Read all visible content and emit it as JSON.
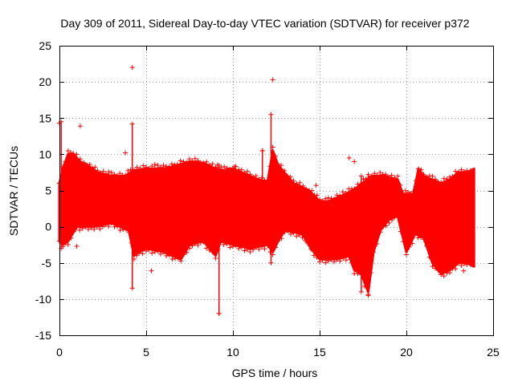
{
  "chart_data": {
    "type": "scatter",
    "title": "Day 309 of 2011, Sidereal Day-to-day VTEC variation (SDTVAR) for receiver p372",
    "xlabel": "GPS time / hours",
    "ylabel": "SDTVAR / TECUs",
    "xlim": [
      0,
      25
    ],
    "ylim": [
      -15,
      25
    ],
    "xticks": [
      0,
      5,
      10,
      15,
      20,
      25
    ],
    "yticks": [
      -15,
      -10,
      -5,
      0,
      5,
      10,
      15,
      20,
      25
    ],
    "grid": true,
    "marker": "+",
    "series_color": "#ff0000",
    "band_upper": [
      [
        0,
        6
      ],
      [
        0.2,
        8
      ],
      [
        0.5,
        10
      ],
      [
        0.8,
        10
      ],
      [
        1.2,
        9
      ],
      [
        1.6,
        8.5
      ],
      [
        2.2,
        7.5
      ],
      [
        3,
        7
      ],
      [
        3.8,
        7
      ],
      [
        4.1,
        7.5
      ],
      [
        4.3,
        7.8
      ],
      [
        5,
        8
      ],
      [
        6,
        8
      ],
      [
        6.8,
        8.5
      ],
      [
        7.5,
        9
      ],
      [
        8.3,
        8.8
      ],
      [
        9,
        8
      ],
      [
        9.5,
        7.8
      ],
      [
        10,
        8
      ],
      [
        10.5,
        7.5
      ],
      [
        11.5,
        6.5
      ],
      [
        12,
        6.2
      ],
      [
        12.3,
        10.5
      ],
      [
        12.6,
        8.5
      ],
      [
        13.5,
        6
      ],
      [
        14.4,
        5
      ],
      [
        15,
        3.5
      ],
      [
        15.5,
        3.5
      ],
      [
        16.5,
        4.5
      ],
      [
        17.2,
        5.5
      ],
      [
        18,
        7
      ],
      [
        18.8,
        7
      ],
      [
        19.5,
        6.5
      ],
      [
        19.8,
        4.5
      ],
      [
        20.4,
        4.5
      ],
      [
        20.7,
        8
      ],
      [
        21,
        7
      ],
      [
        21.5,
        6.5
      ],
      [
        22,
        6
      ],
      [
        22.5,
        6.5
      ],
      [
        23,
        7.5
      ],
      [
        23.5,
        7.5
      ],
      [
        23.9,
        8
      ]
    ],
    "band_lower": [
      [
        0,
        -2
      ],
      [
        0.2,
        -2.5
      ],
      [
        0.5,
        -2
      ],
      [
        1,
        0
      ],
      [
        2,
        0
      ],
      [
        3,
        0.5
      ],
      [
        4,
        -0.5
      ],
      [
        4.3,
        -4
      ],
      [
        4.6,
        -3.5
      ],
      [
        5,
        -3
      ],
      [
        6,
        -3.5
      ],
      [
        7,
        -4.5
      ],
      [
        7.5,
        -2.5
      ],
      [
        8.3,
        -2
      ],
      [
        9,
        -4
      ],
      [
        9.3,
        -2
      ],
      [
        10,
        -2.5
      ],
      [
        11,
        -3
      ],
      [
        12,
        -2.5
      ],
      [
        12.3,
        -3.5
      ],
      [
        12.6,
        -2
      ],
      [
        13,
        -0.5
      ],
      [
        14,
        -1
      ],
      [
        14.5,
        -3
      ],
      [
        15,
        -4.5
      ],
      [
        16,
        -4.5
      ],
      [
        16.7,
        -4
      ],
      [
        17,
        -6
      ],
      [
        17.4,
        -6.5
      ],
      [
        17.8,
        -9
      ],
      [
        18.1,
        -3.5
      ],
      [
        18.5,
        -0.5
      ],
      [
        19,
        1
      ],
      [
        19.5,
        1.5
      ],
      [
        20,
        -3.5
      ],
      [
        20.5,
        -1
      ],
      [
        21,
        -1.5
      ],
      [
        21.5,
        -5
      ],
      [
        22,
        -6.5
      ],
      [
        22.5,
        -6
      ],
      [
        23,
        -5
      ],
      [
        23.5,
        -5
      ],
      [
        23.9,
        -5.5
      ]
    ],
    "spikes": [
      [
        4.2,
        -8.5,
        14.2
      ],
      [
        9.2,
        -12,
        8.5
      ],
      [
        12.2,
        -5,
        15.5
      ],
      [
        17.4,
        -9,
        7
      ],
      [
        17.8,
        -9.5,
        7.2
      ],
      [
        0.1,
        -3,
        14.5
      ],
      [
        11.7,
        -2,
        10.5
      ]
    ],
    "outliers": [
      [
        4.2,
        22
      ],
      [
        12.3,
        20.3
      ],
      [
        0,
        14.3
      ],
      [
        1.2,
        13.9
      ],
      [
        16.7,
        9.5
      ],
      [
        17,
        9
      ],
      [
        11.7,
        10.5
      ],
      [
        3.8,
        10.2
      ],
      [
        5.5,
        8.6
      ],
      [
        9.1,
        8.5
      ],
      [
        10.1,
        8.3
      ],
      [
        14.8,
        5.7
      ],
      [
        14.5,
        3.8
      ],
      [
        5.3,
        -6.1
      ],
      [
        1,
        -2.7
      ],
      [
        23.3,
        -6.1
      ],
      [
        9.2,
        -12
      ]
    ]
  }
}
